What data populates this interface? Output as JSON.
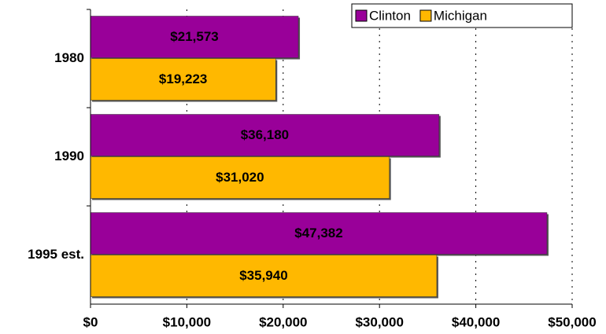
{
  "chart_data": {
    "type": "barh",
    "categories": [
      "1980",
      "1990",
      "1995 est."
    ],
    "series": [
      {
        "name": "Clinton",
        "color": "#990099",
        "values": [
          21573,
          36180,
          47382
        ],
        "value_labels": [
          "$21,573",
          "$36,180",
          "$47,382"
        ]
      },
      {
        "name": "Michigan",
        "color": "#ffb800",
        "values": [
          19223,
          31020,
          35940
        ],
        "value_labels": [
          "$19,223",
          "$31,020",
          "$35,940"
        ]
      }
    ],
    "xlim": [
      0,
      50000
    ],
    "xticks": [
      {
        "value": 0,
        "label": "$0"
      },
      {
        "value": 10000,
        "label": "$10,000"
      },
      {
        "value": 20000,
        "label": "$20,000"
      },
      {
        "value": 30000,
        "label": "$30,000"
      },
      {
        "value": 40000,
        "label": "$40,000"
      },
      {
        "value": 50000,
        "label": "$50,000"
      }
    ],
    "grid": true,
    "legend": "upper right"
  }
}
